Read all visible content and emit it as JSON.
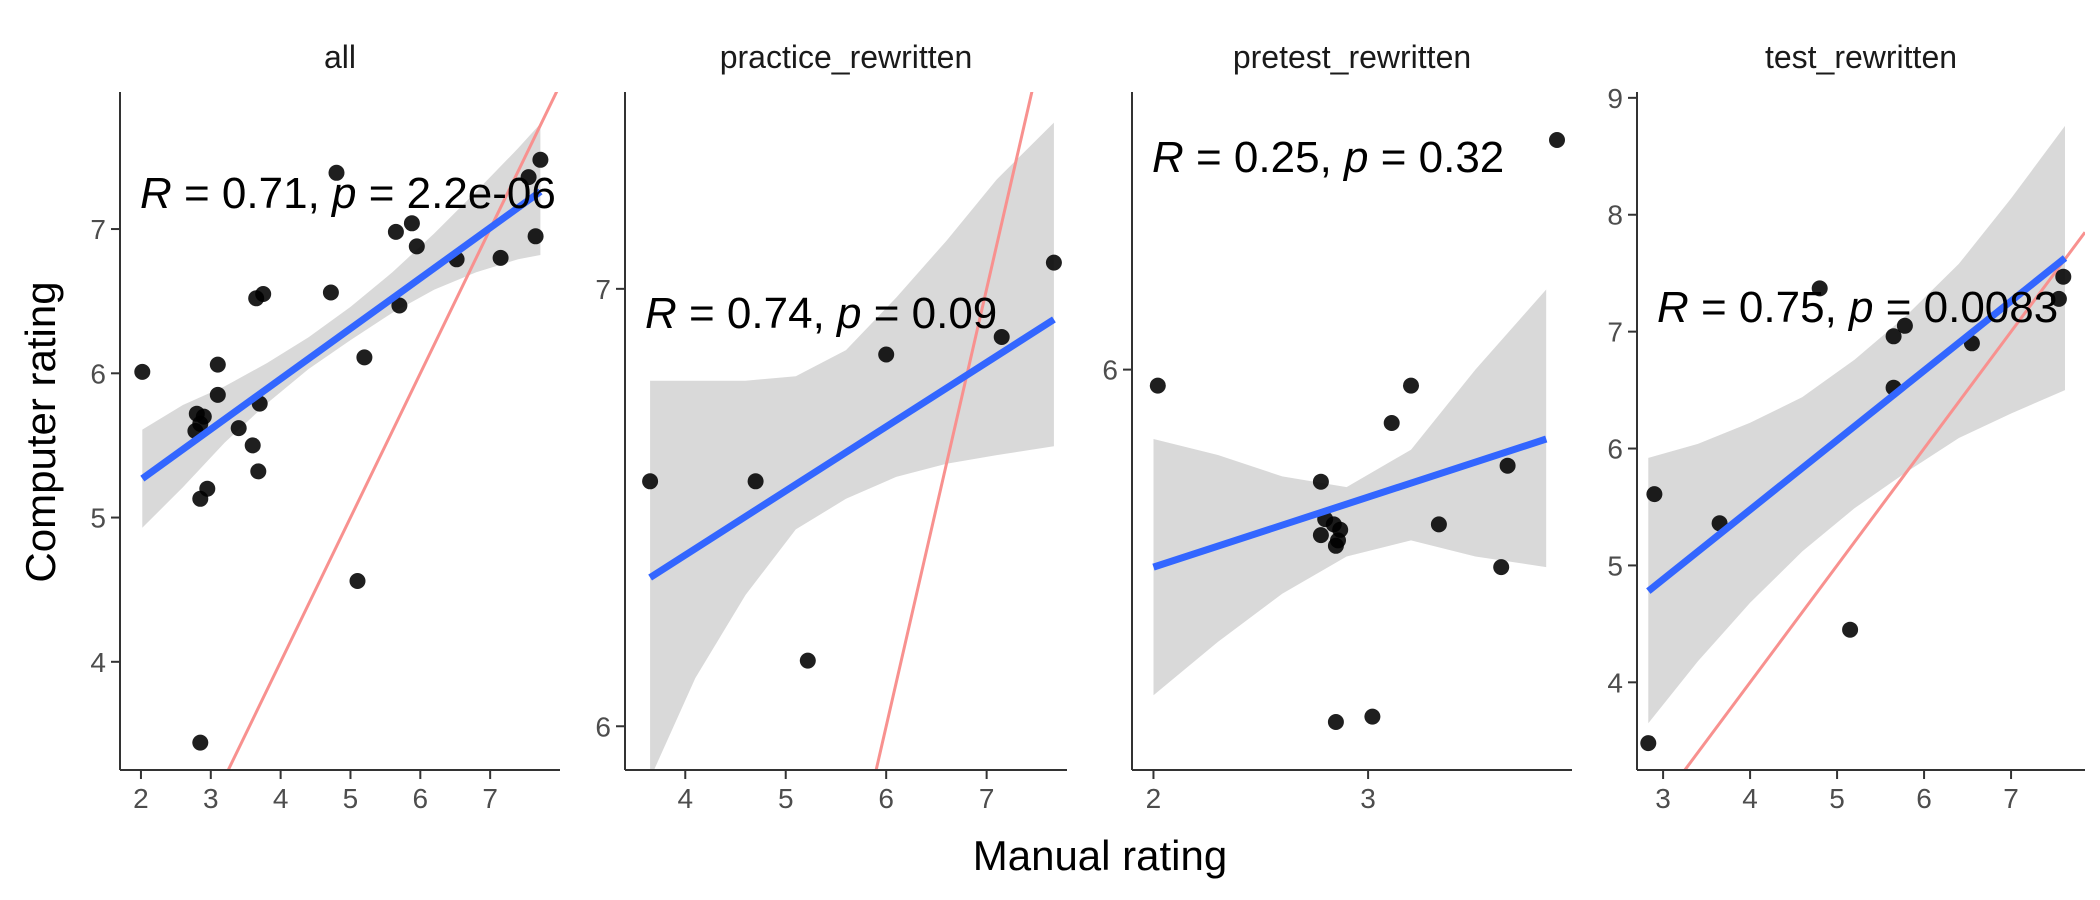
{
  "figure": {
    "xlabel": "Manual rating",
    "ylabel": "Computer rating"
  },
  "style": {
    "point_color": "#000000",
    "fit_color": "#3366ff",
    "ci_color": "#d9d9d9",
    "identity_color": "#f8918f"
  },
  "chart_data": [
    {
      "type": "scatter",
      "title": "all",
      "annotation": {
        "R": "0.71",
        "p": "2.2e-06"
      },
      "xlim": [
        1.7,
        8.0
      ],
      "ylim": [
        3.25,
        7.95
      ],
      "xticks": [
        2,
        3,
        4,
        5,
        6,
        7
      ],
      "yticks": [
        4,
        5,
        6,
        7
      ],
      "points": [
        [
          2.02,
          6.01
        ],
        [
          2.85,
          5.65
        ],
        [
          2.8,
          5.72
        ],
        [
          2.9,
          5.7
        ],
        [
          2.78,
          5.6
        ],
        [
          2.85,
          5.13
        ],
        [
          2.95,
          5.2
        ],
        [
          2.85,
          3.44
        ],
        [
          3.1,
          6.06
        ],
        [
          3.1,
          5.85
        ],
        [
          3.4,
          5.62
        ],
        [
          3.6,
          5.5
        ],
        [
          3.65,
          6.52
        ],
        [
          3.75,
          6.55
        ],
        [
          3.7,
          5.79
        ],
        [
          3.68,
          5.32
        ],
        [
          4.72,
          6.56
        ],
        [
          4.8,
          7.39
        ],
        [
          5.1,
          4.56
        ],
        [
          5.2,
          6.11
        ],
        [
          5.65,
          6.98
        ],
        [
          5.7,
          6.47
        ],
        [
          5.88,
          7.04
        ],
        [
          5.95,
          6.88
        ],
        [
          6.52,
          6.79
        ],
        [
          7.15,
          6.8
        ],
        [
          7.55,
          7.36
        ],
        [
          7.65,
          6.95
        ],
        [
          7.72,
          7.48
        ]
      ],
      "fit": {
        "x": [
          2.02,
          7.72
        ],
        "y": [
          5.27,
          7.26
        ]
      },
      "ci": {
        "x": [
          2.02,
          2.6,
          3.2,
          3.8,
          4.4,
          5.0,
          5.6,
          6.2,
          6.8,
          7.4,
          7.72
        ],
        "lower": [
          4.93,
          5.21,
          5.52,
          5.79,
          6.03,
          6.23,
          6.42,
          6.58,
          6.7,
          6.79,
          6.82
        ],
        "upper": [
          5.61,
          5.78,
          5.91,
          6.07,
          6.25,
          6.46,
          6.7,
          6.97,
          7.26,
          7.56,
          7.73
        ]
      },
      "identity": [
        [
          3.2,
          3.2
        ],
        [
          8.0,
          8.0
        ]
      ]
    },
    {
      "type": "scatter",
      "title": "practice_rewritten",
      "annotation": {
        "R": "0.74",
        "p": "0.09"
      },
      "xlim": [
        3.4,
        7.8
      ],
      "ylim": [
        5.9,
        7.45
      ],
      "xticks": [
        4,
        5,
        6,
        7
      ],
      "yticks": [
        6,
        7
      ],
      "points": [
        [
          3.65,
          6.56
        ],
        [
          4.7,
          6.56
        ],
        [
          5.22,
          6.15
        ],
        [
          6.0,
          6.85
        ],
        [
          7.15,
          6.89
        ],
        [
          7.67,
          7.06
        ]
      ],
      "fit": {
        "x": [
          3.65,
          7.67
        ],
        "y": [
          6.34,
          6.93
        ]
      },
      "ci": {
        "x": [
          3.65,
          4.1,
          4.6,
          5.1,
          5.6,
          6.1,
          6.6,
          7.1,
          7.67
        ],
        "lower": [
          5.88,
          6.11,
          6.3,
          6.45,
          6.52,
          6.57,
          6.6,
          6.62,
          6.64
        ],
        "upper": [
          6.79,
          6.79,
          6.79,
          6.8,
          6.86,
          6.98,
          7.11,
          7.25,
          7.38
        ]
      },
      "identity": [
        [
          5.85,
          5.85
        ],
        [
          7.5,
          7.5
        ]
      ]
    },
    {
      "type": "scatter",
      "title": "pretest_rewritten",
      "annotation": {
        "R": "0.25",
        "p": "0.32"
      },
      "xlim": [
        1.9,
        3.95
      ],
      "ylim": [
        5.25,
        6.52
      ],
      "xticks": [
        2,
        3
      ],
      "yticks": [
        6
      ],
      "points": [
        [
          2.02,
          5.97
        ],
        [
          2.78,
          5.79
        ],
        [
          2.8,
          5.72
        ],
        [
          2.78,
          5.69
        ],
        [
          2.84,
          5.71
        ],
        [
          2.86,
          5.68
        ],
        [
          2.85,
          5.67
        ],
        [
          2.87,
          5.7
        ],
        [
          2.85,
          5.34
        ],
        [
          3.02,
          5.35
        ],
        [
          3.11,
          5.9
        ],
        [
          3.2,
          5.97
        ],
        [
          3.33,
          5.71
        ],
        [
          3.62,
          5.63
        ],
        [
          3.65,
          5.82
        ],
        [
          3.88,
          6.43
        ]
      ],
      "fit": {
        "x": [
          2.0,
          3.83
        ],
        "y": [
          5.63,
          5.87
        ]
      },
      "ci": {
        "x": [
          2.0,
          2.3,
          2.6,
          2.9,
          3.2,
          3.5,
          3.83
        ],
        "lower": [
          5.39,
          5.49,
          5.58,
          5.65,
          5.68,
          5.65,
          5.63
        ],
        "upper": [
          5.87,
          5.84,
          5.8,
          5.78,
          5.85,
          6.0,
          6.15
        ]
      },
      "identity": []
    },
    {
      "type": "scatter",
      "title": "test_rewritten",
      "annotation": {
        "R": "0.75",
        "p": "0.0083"
      },
      "xlim": [
        2.7,
        7.85
      ],
      "ylim": [
        3.25,
        9.05
      ],
      "xticks": [
        3,
        4,
        5,
        6,
        7
      ],
      "yticks": [
        4,
        5,
        6,
        7,
        8,
        9
      ],
      "points": [
        [
          2.83,
          3.48
        ],
        [
          2.9,
          5.61
        ],
        [
          3.65,
          5.36
        ],
        [
          4.8,
          7.37
        ],
        [
          5.15,
          4.45
        ],
        [
          5.65,
          6.96
        ],
        [
          5.65,
          6.52
        ],
        [
          5.78,
          7.05
        ],
        [
          6.55,
          6.9
        ],
        [
          7.55,
          7.28
        ],
        [
          7.6,
          7.47
        ]
      ],
      "fit": {
        "x": [
          2.83,
          7.62
        ],
        "y": [
          4.78,
          7.63
        ]
      },
      "ci": {
        "x": [
          2.83,
          3.4,
          4.0,
          4.6,
          5.2,
          5.8,
          6.4,
          7.0,
          7.62
        ],
        "lower": [
          3.65,
          4.18,
          4.68,
          5.12,
          5.49,
          5.8,
          6.09,
          6.3,
          6.5
        ],
        "upper": [
          5.92,
          6.04,
          6.22,
          6.44,
          6.76,
          7.14,
          7.58,
          8.14,
          8.76
        ]
      },
      "identity": [
        [
          3.1,
          3.1
        ],
        [
          7.85,
          7.85
        ]
      ]
    }
  ]
}
